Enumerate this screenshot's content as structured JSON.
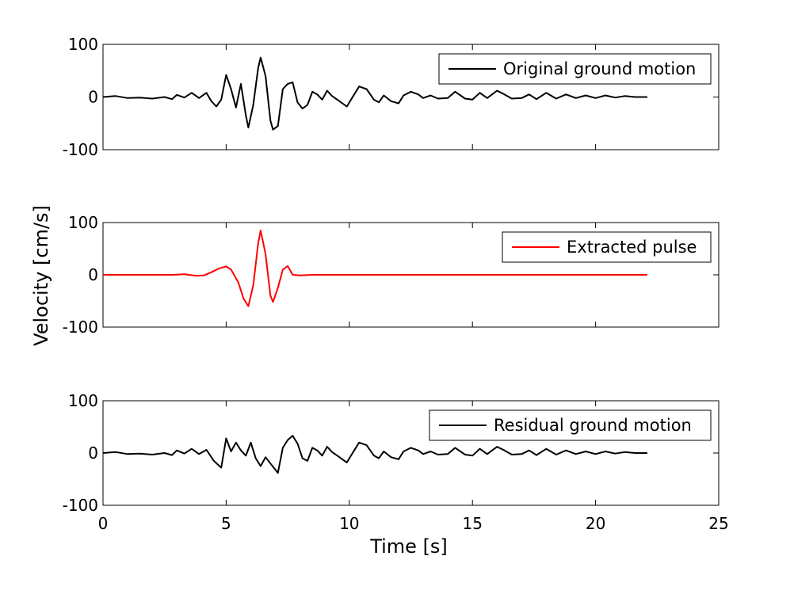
{
  "chart_data": {
    "type": "line",
    "ylabel": "Velocity [cm/s]",
    "xlabel": "Time [s]",
    "xlim": [
      0,
      25
    ],
    "xticks": [
      0,
      5,
      10,
      15,
      20,
      25
    ],
    "xtick_labels": [
      "0",
      "5",
      "10",
      "15",
      "20",
      "25"
    ],
    "ylim": [
      -100,
      100
    ],
    "yticks": [
      -100,
      0,
      100
    ],
    "ytick_labels": [
      "-100",
      "0",
      "100"
    ],
    "grid": false,
    "legend_position": "top-right",
    "panels": [
      {
        "series": [
          {
            "name": "Original ground motion",
            "color": "#000000",
            "x": [
              0,
              0.5,
              1,
              1.5,
              2,
              2.5,
              2.8,
              3,
              3.3,
              3.6,
              3.9,
              4.2,
              4.4,
              4.6,
              4.8,
              5,
              5.2,
              5.4,
              5.6,
              5.8,
              5.9,
              6.1,
              6.3,
              6.4,
              6.6,
              6.8,
              6.9,
              7.1,
              7.3,
              7.5,
              7.7,
              7.9,
              8.1,
              8.3,
              8.5,
              8.7,
              8.9,
              9.1,
              9.3,
              9.6,
              9.9,
              10.2,
              10.4,
              10.7,
              11,
              11.2,
              11.4,
              11.7,
              12,
              12.2,
              12.5,
              12.8,
              13,
              13.3,
              13.6,
              14,
              14.3,
              14.7,
              15,
              15.3,
              15.6,
              16,
              16.3,
              16.6,
              17,
              17.3,
              17.6,
              18,
              18.4,
              18.8,
              19.2,
              19.6,
              20,
              20.4,
              20.8,
              21.2,
              21.6,
              22.1
            ],
            "y": [
              0,
              2,
              -2,
              -1,
              -3,
              0,
              -4,
              4,
              -1,
              8,
              -2,
              8,
              -8,
              -18,
              -5,
              42,
              15,
              -20,
              25,
              -35,
              -58,
              -15,
              55,
              75,
              40,
              -45,
              -62,
              -55,
              15,
              25,
              28,
              -10,
              -22,
              -15,
              10,
              5,
              -5,
              12,
              2,
              -8,
              -18,
              5,
              20,
              15,
              -5,
              -10,
              3,
              -8,
              -12,
              3,
              10,
              5,
              -2,
              3,
              -3,
              -2,
              10,
              -3,
              -5,
              8,
              -2,
              12,
              5,
              -3,
              -2,
              5,
              -4,
              8,
              -3,
              5,
              -2,
              3,
              -2,
              3,
              -1,
              2,
              0,
              0
            ]
          }
        ]
      },
      {
        "series": [
          {
            "name": "Extracted pulse",
            "color": "#ff0000",
            "x": [
              0,
              2.8,
              3.3,
              3.8,
              4.1,
              4.4,
              4.7,
              5,
              5.2,
              5.5,
              5.7,
              5.9,
              6.1,
              6.3,
              6.4,
              6.6,
              6.8,
              6.9,
              7.1,
              7.3,
              7.5,
              7.7,
              8,
              8.5,
              9.5,
              10,
              22.1
            ],
            "y": [
              0,
              0,
              1,
              -2,
              -1,
              5,
              12,
              16,
              10,
              -15,
              -45,
              -60,
              -20,
              60,
              85,
              40,
              -40,
              -52,
              -25,
              10,
              17,
              0,
              -1,
              0,
              0,
              0,
              0
            ]
          }
        ]
      },
      {
        "series": [
          {
            "name": "Residual ground motion",
            "color": "#000000",
            "x": [
              0,
              0.5,
              1,
              1.5,
              2,
              2.5,
              2.8,
              3,
              3.3,
              3.6,
              3.9,
              4.2,
              4.5,
              4.8,
              5,
              5.2,
              5.4,
              5.6,
              5.8,
              6,
              6.2,
              6.4,
              6.6,
              6.8,
              7,
              7.1,
              7.3,
              7.5,
              7.7,
              7.9,
              8.1,
              8.3,
              8.5,
              8.7,
              8.9,
              9.1,
              9.3,
              9.6,
              9.9,
              10.2,
              10.4,
              10.7,
              11,
              11.2,
              11.4,
              11.7,
              12,
              12.2,
              12.5,
              12.8,
              13,
              13.3,
              13.6,
              14,
              14.3,
              14.7,
              15,
              15.3,
              15.6,
              16,
              16.3,
              16.6,
              17,
              17.3,
              17.6,
              18,
              18.4,
              18.8,
              19.2,
              19.6,
              20,
              20.4,
              20.8,
              21.2,
              21.6,
              22.1
            ],
            "y": [
              0,
              2,
              -2,
              -1,
              -3,
              0,
              -4,
              5,
              -1,
              8,
              -2,
              6,
              -15,
              -28,
              28,
              3,
              20,
              5,
              -5,
              20,
              -10,
              -25,
              -8,
              -20,
              -32,
              -38,
              10,
              25,
              33,
              18,
              -10,
              -15,
              10,
              5,
              -5,
              12,
              2,
              -8,
              -18,
              5,
              20,
              15,
              -5,
              -10,
              3,
              -8,
              -12,
              3,
              10,
              5,
              -2,
              3,
              -3,
              -2,
              10,
              -3,
              -5,
              8,
              -2,
              12,
              5,
              -3,
              -2,
              5,
              -4,
              8,
              -3,
              5,
              -2,
              3,
              -2,
              3,
              -1,
              2,
              0,
              0
            ]
          }
        ]
      }
    ]
  }
}
